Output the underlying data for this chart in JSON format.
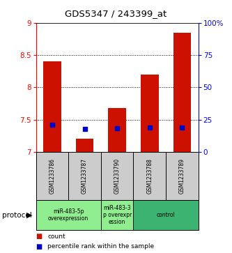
{
  "title": "GDS5347 / 243399_at",
  "samples": [
    "GSM1233786",
    "GSM1233787",
    "GSM1233790",
    "GSM1233788",
    "GSM1233789"
  ],
  "red_bar_tops": [
    8.4,
    7.2,
    7.68,
    8.2,
    8.85
  ],
  "red_bar_bottoms": [
    7.0,
    7.0,
    7.0,
    7.0,
    7.0
  ],
  "blue_values": [
    7.42,
    7.35,
    7.37,
    7.38,
    7.38
  ],
  "ylim": [
    7.0,
    9.0
  ],
  "yticks_left": [
    7.0,
    7.5,
    8.0,
    8.5,
    9.0
  ],
  "yticks_right_vals": [
    0,
    25,
    50,
    75,
    100
  ],
  "yticks_right_labels": [
    "0",
    "25",
    "50",
    "75",
    "100%"
  ],
  "groups": [
    {
      "label": "miR-483-5p\noverexpression",
      "start": 0,
      "end": 2,
      "color": "#90EE90"
    },
    {
      "label": "miR-483-3\np overexpr\nession",
      "start": 2,
      "end": 3,
      "color": "#90EE90"
    },
    {
      "label": "control",
      "start": 3,
      "end": 5,
      "color": "#3CB371"
    }
  ],
  "bar_color": "#CC1100",
  "blue_color": "#0000CC",
  "bg_color": "#FFFFFF",
  "sample_bg": "#CCCCCC",
  "protocol_label": "protocol",
  "legend_count": "count",
  "legend_pct": "percentile rank within the sample",
  "grid_yticks": [
    7.5,
    8.0,
    8.5
  ]
}
